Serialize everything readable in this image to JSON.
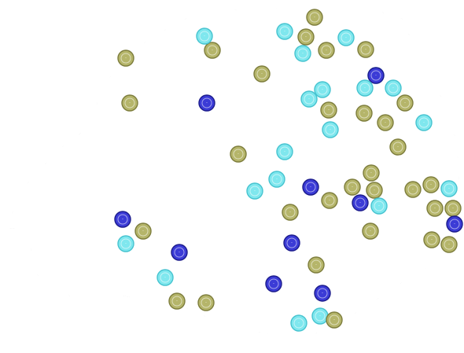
{
  "map": {
    "colors": {
      "background": "#ffffff",
      "land": "#ffffff",
      "boundary": "#2a2a2a",
      "streets": "#d4d4d4"
    },
    "legend_categories": [
      {
        "key": "olive",
        "fill": "#b5b56a",
        "stroke": "#7d7d3c"
      },
      {
        "key": "cyan",
        "fill": "#7fe7ee",
        "stroke": "#46c3cf"
      },
      {
        "key": "blue",
        "fill": "#3b3bd6",
        "stroke": "#1c1c8c"
      }
    ]
  },
  "markers": [
    {
      "cat": "olive",
      "label": "·"
    },
    {
      "cat": "olive",
      "label": "·"
    },
    {
      "cat": "cyan",
      "label": "·"
    },
    {
      "cat": "olive",
      "label": "·"
    },
    {
      "cat": "cyan",
      "label": "·"
    },
    {
      "cat": "olive",
      "label": "·"
    },
    {
      "cat": "olive",
      "label": "·"
    },
    {
      "cat": "cyan",
      "label": "·"
    },
    {
      "cat": "olive",
      "label": "·"
    },
    {
      "cat": "cyan",
      "label": "·"
    },
    {
      "cat": "olive",
      "label": "·"
    },
    {
      "cat": "olive",
      "label": "·"
    },
    {
      "cat": "blue",
      "label": "·"
    },
    {
      "cat": "cyan",
      "label": "·"
    },
    {
      "cat": "blue",
      "label": "·"
    },
    {
      "cat": "cyan",
      "label": "·"
    },
    {
      "cat": "cyan",
      "label": "·"
    },
    {
      "cat": "cyan",
      "label": "·"
    },
    {
      "cat": "olive",
      "label": "·"
    },
    {
      "cat": "cyan",
      "label": "·"
    },
    {
      "cat": "olive",
      "label": "·"
    },
    {
      "cat": "olive",
      "label": "·"
    },
    {
      "cat": "olive",
      "label": "·"
    },
    {
      "cat": "cyan",
      "label": "·"
    },
    {
      "cat": "cyan",
      "label": "·"
    },
    {
      "cat": "olive",
      "label": "·"
    },
    {
      "cat": "olive",
      "label": "·"
    },
    {
      "cat": "cyan",
      "label": "·"
    },
    {
      "cat": "cyan",
      "label": "·"
    },
    {
      "cat": "cyan",
      "label": "·"
    },
    {
      "cat": "blue",
      "label": "·"
    },
    {
      "cat": "olive",
      "label": "·"
    },
    {
      "cat": "olive",
      "label": "·"
    },
    {
      "cat": "olive",
      "label": "·"
    },
    {
      "cat": "blue",
      "label": "·"
    },
    {
      "cat": "cyan",
      "label": "·"
    },
    {
      "cat": "olive",
      "label": "·"
    },
    {
      "cat": "olive",
      "label": "·"
    },
    {
      "cat": "cyan",
      "label": "·"
    },
    {
      "cat": "olive",
      "label": "·"
    },
    {
      "cat": "olive",
      "label": "·"
    },
    {
      "cat": "olive",
      "label": "·"
    },
    {
      "cat": "blue",
      "label": "·"
    },
    {
      "cat": "blue",
      "label": "·"
    },
    {
      "cat": "olive",
      "label": "·"
    },
    {
      "cat": "blue",
      "label": "·"
    },
    {
      "cat": "cyan",
      "label": "·"
    },
    {
      "cat": "olive",
      "label": "·"
    },
    {
      "cat": "olive",
      "label": "·"
    },
    {
      "cat": "olive",
      "label": "·"
    },
    {
      "cat": "blue",
      "label": "·"
    },
    {
      "cat": "olive",
      "label": "·"
    },
    {
      "cat": "cyan",
      "label": "·"
    },
    {
      "cat": "blue",
      "label": "·"
    },
    {
      "cat": "olive",
      "label": "·"
    },
    {
      "cat": "blue",
      "label": "·"
    },
    {
      "cat": "olive",
      "label": "·"
    },
    {
      "cat": "olive",
      "label": "·"
    },
    {
      "cat": "cyan",
      "label": "·"
    },
    {
      "cat": "cyan",
      "label": "·"
    },
    {
      "cat": "olive",
      "label": "·"
    }
  ]
}
